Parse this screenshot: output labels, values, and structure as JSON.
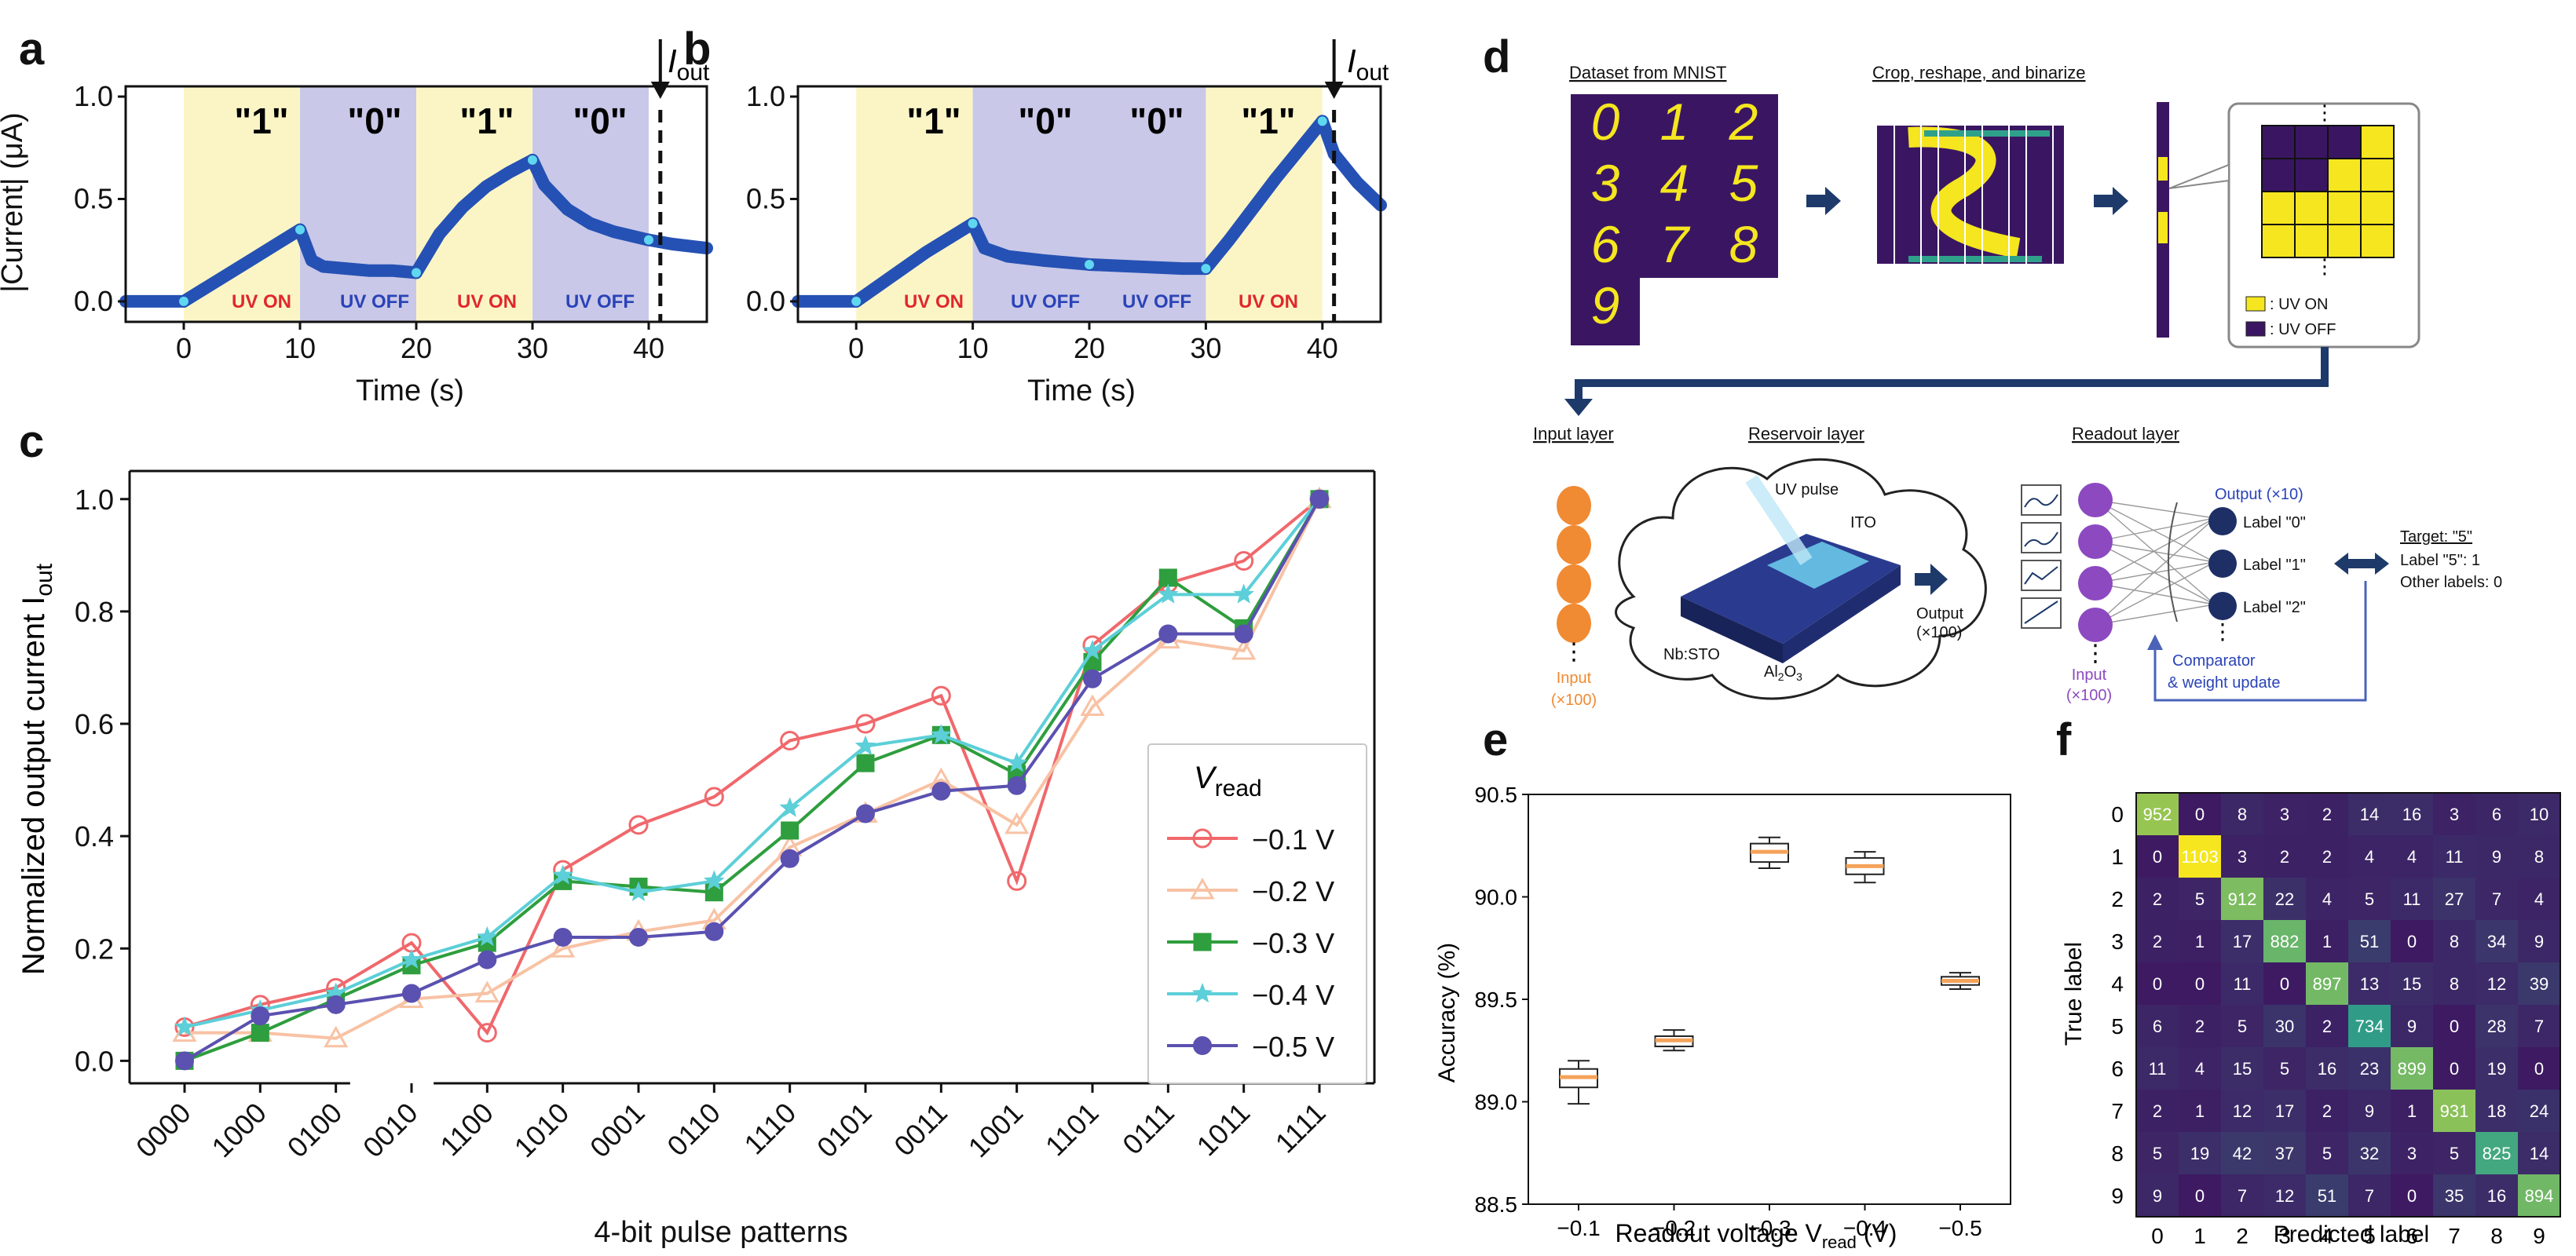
{
  "panel_labels": [
    "a",
    "b",
    "c",
    "d",
    "e",
    "f"
  ],
  "colors": {
    "uv_on_bg": "#fbf5c6",
    "uv_off_bg": "#c9c8e8",
    "trace": "#2551b4",
    "trace_marker": "#5fd7f0",
    "uv_on_text": "#e0282c",
    "uv_off_text": "#2a43b8",
    "box_fill": "#f4a35a",
    "heat_low": "#3e1a63",
    "heat_mid": "#2fa18a",
    "heat_high": "#f5e61f"
  },
  "panel_a": {
    "ylabel": "|Current| (μA)",
    "xlabel": "Time (s)",
    "segments": [
      {
        "label": "\"1\"",
        "state": "UV ON"
      },
      {
        "label": "\"0\"",
        "state": "UV OFF"
      },
      {
        "label": "\"1\"",
        "state": "UV ON"
      },
      {
        "label": "\"0\"",
        "state": "UV OFF"
      }
    ],
    "iout_label": "I",
    "iout_sub": "out"
  },
  "panel_b": {
    "xlabel": "Time (s)",
    "segments": [
      {
        "label": "\"1\"",
        "state": "UV ON"
      },
      {
        "label": "\"0\"",
        "state": "UV OFF"
      },
      {
        "label": "\"0\"",
        "state": "UV OFF"
      },
      {
        "label": "\"1\"",
        "state": "UV ON"
      }
    ],
    "iout_label": "I",
    "iout_sub": "out"
  },
  "panel_c": {
    "ylabel": "Normalized output current I",
    "ylabel_sub": "out",
    "xlabel": "4-bit pulse patterns",
    "legend_title": "V",
    "legend_title_sub": "read"
  },
  "panel_d": {
    "dataset_title": "Dataset from MNIST",
    "crop_title": "Crop, reshape, and binarize",
    "digits": [
      "0",
      "1",
      "2",
      "3",
      "4",
      "5",
      "6",
      "7",
      "8",
      "9"
    ],
    "legend_uv_on": ": UV ON",
    "legend_uv_off": ": UV OFF",
    "input_layer": "Input layer",
    "reservoir_layer": "Reservoir layer",
    "readout_layer": "Readout layer",
    "input_caption": "Input",
    "input_count": "(×100)",
    "uv_pulse": "UV pulse",
    "ito": "ITO",
    "nbsto": "Nb:STO",
    "al2o3": "Al",
    "al2o3_sub": "2",
    "al2o3_tail": "O",
    "al2o3_sub2": "3",
    "res_output": "Output",
    "res_output_count": "(×100)",
    "readout_input": "Input",
    "readout_input_count": "(×100)",
    "output_title": "Output (×10)",
    "labels": [
      "Label \"0\"",
      "Label \"1\"",
      "Label \"2\""
    ],
    "target": "Target: \"5\"",
    "target_label": "Label \"5\": 1",
    "target_other": "Other labels: 0",
    "comparator": "Comparator",
    "weight_update": "& weight update",
    "ellipsis": "⋮"
  },
  "panel_e": {
    "ylabel": "Accuracy (%)",
    "xlabel": "Readout voltage V",
    "xlabel_sub": "read",
    "xlabel_unit": " (V)"
  },
  "panel_f": {
    "ylabel": "True label",
    "xlabel": "Predicted label"
  },
  "chart_data": [
    {
      "id": "a",
      "type": "line",
      "title": "",
      "xlabel": "Time (s)",
      "ylabel": "|Current| (μA)",
      "xlim": [
        -5,
        45
      ],
      "ylim": [
        -0.1,
        1.05
      ],
      "xticks": [
        0,
        10,
        20,
        30,
        40
      ],
      "yticks": [
        0.0,
        0.5,
        1.0
      ],
      "x": [
        -5,
        0,
        2,
        4,
        6,
        8,
        10,
        11,
        12,
        14,
        16,
        18,
        20,
        22,
        24,
        26,
        28,
        30,
        31,
        33,
        35,
        37,
        40,
        42,
        45
      ],
      "y": [
        0.0,
        0.0,
        0.07,
        0.14,
        0.21,
        0.28,
        0.35,
        0.2,
        0.17,
        0.16,
        0.15,
        0.15,
        0.14,
        0.33,
        0.46,
        0.56,
        0.63,
        0.69,
        0.57,
        0.45,
        0.38,
        0.34,
        0.3,
        0.28,
        0.26
      ],
      "iout_x": 41
    },
    {
      "id": "b",
      "type": "line",
      "title": "",
      "xlabel": "Time (s)",
      "ylabel": "",
      "xlim": [
        -5,
        45
      ],
      "ylim": [
        -0.1,
        1.05
      ],
      "xticks": [
        0,
        10,
        20,
        30,
        40
      ],
      "yticks": [
        0.0,
        0.5,
        1.0
      ],
      "x": [
        -5,
        0,
        2,
        4,
        6,
        8,
        10,
        11,
        13,
        16,
        20,
        24,
        28,
        30,
        32,
        34,
        36,
        38,
        40,
        41,
        43,
        45
      ],
      "y": [
        0.0,
        0.0,
        0.08,
        0.16,
        0.24,
        0.31,
        0.38,
        0.26,
        0.22,
        0.2,
        0.18,
        0.17,
        0.16,
        0.16,
        0.3,
        0.45,
        0.6,
        0.74,
        0.88,
        0.72,
        0.58,
        0.47
      ],
      "iout_x": 41
    },
    {
      "id": "c",
      "type": "line",
      "title": "",
      "xlabel": "4-bit pulse patterns",
      "ylabel": "Normalized output current I_out",
      "ylim": [
        -0.04,
        1.05
      ],
      "yticks": [
        0.0,
        0.2,
        0.4,
        0.6,
        0.8,
        1.0
      ],
      "categories": [
        "0000",
        "1000",
        "0100",
        "0010",
        "1100",
        "1010",
        "0001",
        "0110",
        "1110",
        "0101",
        "0011",
        "1001",
        "1101",
        "0111",
        "1011",
        "1111"
      ],
      "series": [
        {
          "name": "−0.1 V",
          "color": "#f0686c",
          "marker": "circle-open",
          "values": [
            0.06,
            0.1,
            0.13,
            0.21,
            0.05,
            0.34,
            0.42,
            0.47,
            0.57,
            0.6,
            0.65,
            0.32,
            0.74,
            0.85,
            0.89,
            1.0
          ]
        },
        {
          "name": "−0.2 V",
          "color": "#f8c2a4",
          "marker": "triangle-open",
          "values": [
            0.05,
            0.05,
            0.04,
            0.11,
            0.12,
            0.2,
            0.23,
            0.25,
            0.38,
            0.44,
            0.5,
            0.42,
            0.63,
            0.75,
            0.73,
            1.0
          ]
        },
        {
          "name": "−0.3 V",
          "color": "#2e9e3e",
          "marker": "square",
          "values": [
            0.0,
            0.05,
            0.11,
            0.17,
            0.21,
            0.32,
            0.31,
            0.3,
            0.41,
            0.53,
            0.58,
            0.51,
            0.71,
            0.86,
            0.77,
            1.0
          ]
        },
        {
          "name": "−0.4 V",
          "color": "#5ccfd8",
          "marker": "star",
          "values": [
            0.06,
            0.09,
            0.12,
            0.18,
            0.22,
            0.33,
            0.3,
            0.32,
            0.45,
            0.56,
            0.58,
            0.53,
            0.73,
            0.83,
            0.83,
            1.0
          ]
        },
        {
          "name": "−0.5 V",
          "color": "#5a51b0",
          "marker": "circle",
          "values": [
            0.0,
            0.08,
            0.1,
            0.12,
            0.18,
            0.22,
            0.22,
            0.23,
            0.36,
            0.44,
            0.48,
            0.49,
            0.68,
            0.76,
            0.76,
            1.0
          ]
        }
      ]
    },
    {
      "id": "e",
      "type": "box",
      "title": "",
      "xlabel": "Readout voltage V_read (V)",
      "ylabel": "Accuracy (%)",
      "ylim": [
        88.5,
        90.5
      ],
      "yticks": [
        88.5,
        89.0,
        89.5,
        90.0,
        90.5
      ],
      "categories": [
        "−0.1",
        "−0.2",
        "−0.3",
        "−0.4",
        "−0.5"
      ],
      "boxes": [
        {
          "min": 88.99,
          "q1": 89.07,
          "median": 89.12,
          "q3": 89.16,
          "max": 89.2
        },
        {
          "min": 89.25,
          "q1": 89.27,
          "median": 89.3,
          "q3": 89.32,
          "max": 89.35
        },
        {
          "min": 90.14,
          "q1": 90.17,
          "median": 90.22,
          "q3": 90.26,
          "max": 90.29
        },
        {
          "min": 90.07,
          "q1": 90.11,
          "median": 90.15,
          "q3": 90.19,
          "max": 90.22
        },
        {
          "min": 89.55,
          "q1": 89.57,
          "median": 89.59,
          "q3": 89.61,
          "max": 89.63
        }
      ]
    },
    {
      "id": "f",
      "type": "heatmap",
      "title": "",
      "xlabel": "Predicted label",
      "ylabel": "True label",
      "x_categories": [
        "0",
        "1",
        "2",
        "3",
        "4",
        "5",
        "6",
        "7",
        "8",
        "9"
      ],
      "y_categories": [
        "0",
        "1",
        "2",
        "3",
        "4",
        "5",
        "6",
        "7",
        "8",
        "9"
      ],
      "max_value": 1103,
      "values": [
        [
          "952",
          "0",
          "8",
          "3",
          "2",
          "14",
          "16",
          "3",
          "6",
          "10"
        ],
        [
          "0",
          "1103",
          "3",
          "2",
          "2",
          "4",
          "4",
          "11",
          "9",
          "8"
        ],
        [
          "2",
          "5",
          "912",
          "22",
          "4",
          "5",
          "11",
          "27",
          "7",
          "4"
        ],
        [
          "2",
          "1",
          "17",
          "882",
          "1",
          "51",
          "0",
          "8",
          "34",
          "9"
        ],
        [
          "0",
          "0",
          "11",
          "0",
          "897",
          "13",
          "15",
          "8",
          "12",
          "39"
        ],
        [
          "6",
          "2",
          "5",
          "30",
          "2",
          "734",
          "9",
          "0",
          "28",
          "7"
        ],
        [
          "11",
          "4",
          "15",
          "5",
          "16",
          "23",
          "899",
          "0",
          "19",
          "0"
        ],
        [
          "2",
          "1",
          "12",
          "17",
          "2",
          "9",
          "1",
          "931",
          "18",
          "24"
        ],
        [
          "5",
          "19",
          "42",
          "37",
          "5",
          "32",
          "3",
          "5",
          "825",
          "14"
        ],
        [
          "9",
          "0",
          "7",
          "12",
          "51",
          "7",
          "0",
          "35",
          "16",
          "894"
        ]
      ]
    }
  ]
}
